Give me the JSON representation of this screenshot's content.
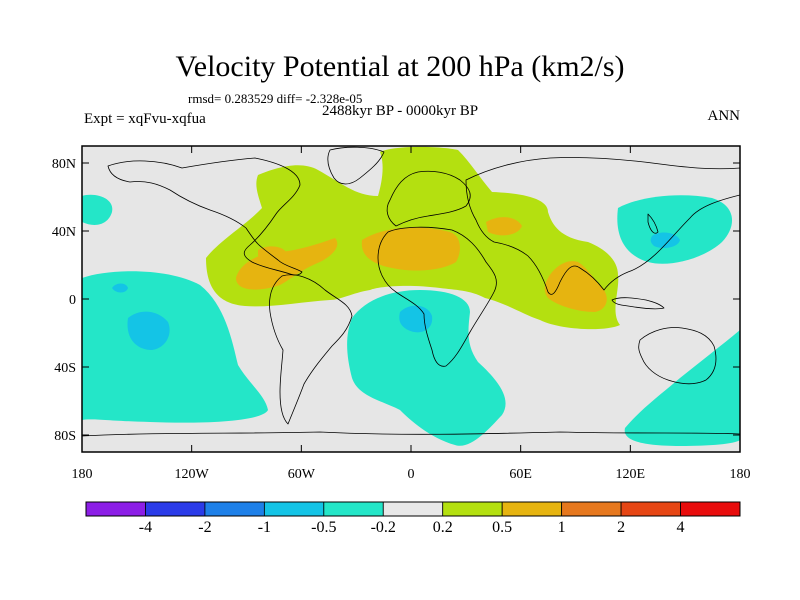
{
  "title": "Velocity Potential at 200 hPa (km2/s)",
  "stats": "rmsd= 0.283529 diff= -2.328e-05",
  "experiment": "Expt = xqFvu-xqfua",
  "period": "2488kyr BP - 0000kyr BP",
  "season": "ANN",
  "axes": {
    "lon_ticks": [
      {
        "lon": -180,
        "label": "180"
      },
      {
        "lon": -120,
        "label": "120W"
      },
      {
        "lon": -60,
        "label": "60W"
      },
      {
        "lon": 0,
        "label": "0"
      },
      {
        "lon": 60,
        "label": "60E"
      },
      {
        "lon": 120,
        "label": "120E"
      },
      {
        "lon": 180,
        "label": "180"
      }
    ],
    "lat_ticks": [
      {
        "lat": 80,
        "label": "80N"
      },
      {
        "lat": 40,
        "label": "40N"
      },
      {
        "lat": 0,
        "label": "0"
      },
      {
        "lat": -40,
        "label": "40S"
      },
      {
        "lat": -80,
        "label": "80S"
      }
    ]
  },
  "colorbar": {
    "colors": [
      "#8c1ee6",
      "#2b3be8",
      "#1e80e8",
      "#14c4e6",
      "#24e6c8",
      "#e8e8e8",
      "#b4e010",
      "#e6b410",
      "#e6781e",
      "#e64614",
      "#e80c0c"
    ],
    "labels": [
      "-4",
      "-2",
      "-1",
      "-0.5",
      "-0.2",
      "0.2",
      "0.5",
      "1",
      "2",
      "4"
    ]
  },
  "colors": {
    "background": "#e6e6e6",
    "negative_light": "#24e6c8",
    "negative_mid": "#14c4e6",
    "positive_light": "#b4e010",
    "positive_mid": "#e6b410"
  }
}
